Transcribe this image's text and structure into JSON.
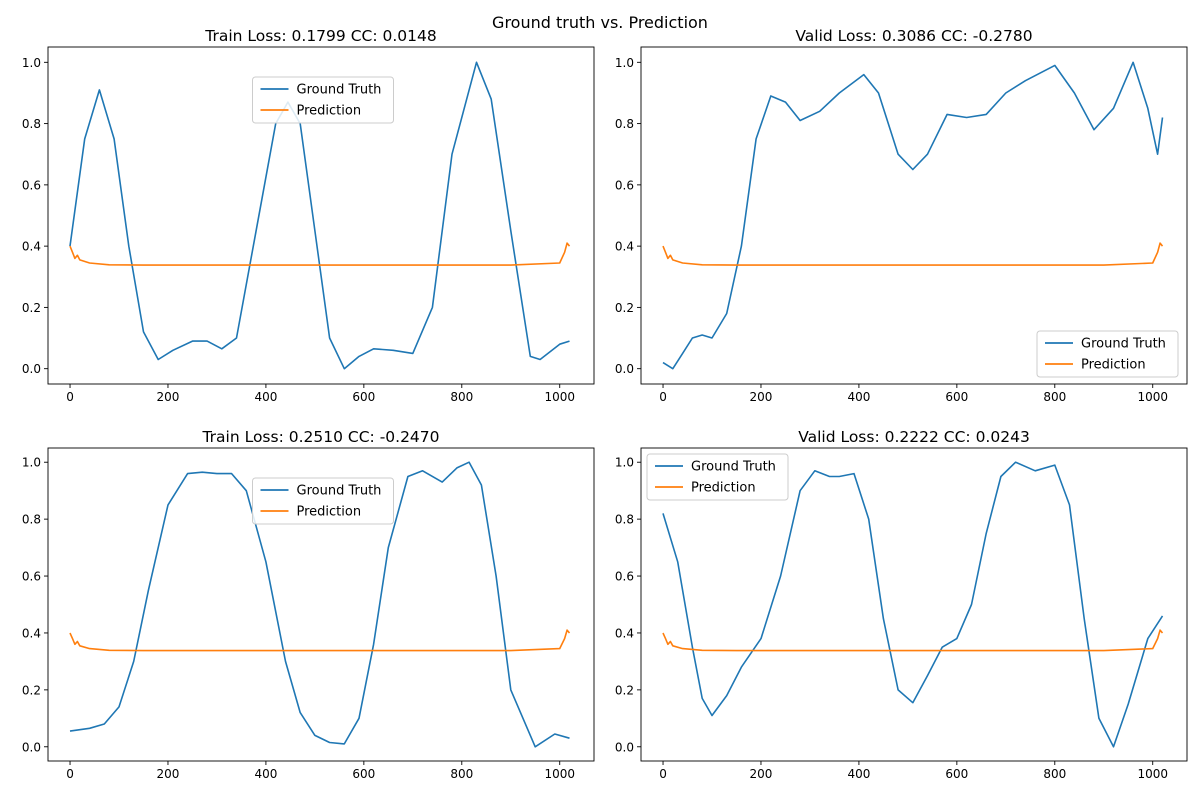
{
  "figure": {
    "suptitle": "Ground truth vs. Prediction"
  },
  "colors": {
    "ground_truth": "#1f77b4",
    "prediction": "#ff7f0e",
    "axes": "#000000",
    "legend_edge": "#cccccc"
  },
  "chart_data": [
    {
      "type": "line",
      "title": "Train Loss: 0.1799 CC: 0.0148",
      "xlabel": "",
      "ylabel": "",
      "xlim": [
        -45,
        1070
      ],
      "ylim": [
        -0.05,
        1.05
      ],
      "xticks": [
        0,
        200,
        400,
        600,
        800,
        1000
      ],
      "yticks": [
        0.0,
        0.2,
        0.4,
        0.6,
        0.8,
        1.0
      ],
      "grid": false,
      "legend": "upper center",
      "series": [
        {
          "name": "Ground Truth",
          "color": "#1f77b4",
          "x": [
            0,
            30,
            60,
            90,
            120,
            150,
            180,
            210,
            250,
            280,
            310,
            340,
            380,
            420,
            445,
            470,
            500,
            530,
            560,
            590,
            620,
            660,
            700,
            740,
            780,
            830,
            860,
            900,
            940,
            960,
            1000,
            1020
          ],
          "y": [
            0.4,
            0.75,
            0.91,
            0.75,
            0.4,
            0.12,
            0.03,
            0.06,
            0.09,
            0.09,
            0.065,
            0.1,
            0.45,
            0.8,
            0.87,
            0.8,
            0.45,
            0.1,
            0.0,
            0.04,
            0.065,
            0.06,
            0.05,
            0.2,
            0.7,
            1.0,
            0.88,
            0.45,
            0.04,
            0.03,
            0.08,
            0.09
          ]
        },
        {
          "name": "Prediction",
          "color": "#ff7f0e",
          "x": [
            0,
            5,
            10,
            15,
            20,
            40,
            80,
            150,
            300,
            500,
            700,
            900,
            1000,
            1010,
            1015,
            1020
          ],
          "y": [
            0.4,
            0.38,
            0.36,
            0.37,
            0.355,
            0.345,
            0.339,
            0.338,
            0.338,
            0.338,
            0.338,
            0.338,
            0.345,
            0.38,
            0.41,
            0.4
          ]
        }
      ]
    },
    {
      "type": "line",
      "title": "Valid Loss: 0.3086 CC: -0.2780",
      "xlabel": "",
      "ylabel": "",
      "xlim": [
        -45,
        1070
      ],
      "ylim": [
        -0.05,
        1.05
      ],
      "xticks": [
        0,
        200,
        400,
        600,
        800,
        1000
      ],
      "yticks": [
        0.0,
        0.2,
        0.4,
        0.6,
        0.8,
        1.0
      ],
      "grid": false,
      "legend": "lower right",
      "series": [
        {
          "name": "Ground Truth",
          "color": "#1f77b4",
          "x": [
            0,
            20,
            40,
            60,
            80,
            100,
            130,
            160,
            190,
            220,
            250,
            280,
            320,
            360,
            410,
            440,
            480,
            510,
            540,
            580,
            620,
            660,
            700,
            740,
            800,
            840,
            880,
            920,
            960,
            990,
            1010,
            1020
          ],
          "y": [
            0.02,
            0.0,
            0.05,
            0.1,
            0.11,
            0.1,
            0.18,
            0.4,
            0.75,
            0.89,
            0.87,
            0.81,
            0.84,
            0.9,
            0.96,
            0.9,
            0.7,
            0.65,
            0.7,
            0.83,
            0.82,
            0.83,
            0.9,
            0.94,
            0.99,
            0.9,
            0.78,
            0.85,
            1.0,
            0.85,
            0.7,
            0.82
          ]
        },
        {
          "name": "Prediction",
          "color": "#ff7f0e",
          "x": [
            0,
            5,
            10,
            15,
            20,
            40,
            80,
            150,
            300,
            500,
            700,
            900,
            1000,
            1010,
            1015,
            1020
          ],
          "y": [
            0.4,
            0.38,
            0.36,
            0.37,
            0.355,
            0.345,
            0.339,
            0.338,
            0.338,
            0.338,
            0.338,
            0.338,
            0.345,
            0.38,
            0.41,
            0.4
          ]
        }
      ]
    },
    {
      "type": "line",
      "title": "Train Loss: 0.2510 CC: -0.2470",
      "xlabel": "",
      "ylabel": "",
      "xlim": [
        -45,
        1070
      ],
      "ylim": [
        -0.05,
        1.05
      ],
      "xticks": [
        0,
        200,
        400,
        600,
        800,
        1000
      ],
      "yticks": [
        0.0,
        0.2,
        0.4,
        0.6,
        0.8,
        1.0
      ],
      "grid": false,
      "legend": "upper center",
      "series": [
        {
          "name": "Ground Truth",
          "color": "#1f77b4",
          "x": [
            0,
            40,
            70,
            100,
            130,
            160,
            200,
            240,
            270,
            300,
            330,
            360,
            400,
            440,
            470,
            500,
            530,
            560,
            590,
            620,
            650,
            690,
            720,
            760,
            790,
            815,
            840,
            870,
            900,
            950,
            990,
            1020
          ],
          "y": [
            0.055,
            0.065,
            0.08,
            0.14,
            0.3,
            0.55,
            0.85,
            0.96,
            0.965,
            0.96,
            0.96,
            0.9,
            0.65,
            0.3,
            0.12,
            0.04,
            0.015,
            0.01,
            0.1,
            0.36,
            0.7,
            0.95,
            0.97,
            0.93,
            0.98,
            1.0,
            0.92,
            0.6,
            0.2,
            0.0,
            0.045,
            0.03
          ]
        },
        {
          "name": "Prediction",
          "color": "#ff7f0e",
          "x": [
            0,
            5,
            10,
            15,
            20,
            40,
            80,
            150,
            300,
            500,
            700,
            900,
            1000,
            1010,
            1015,
            1020
          ],
          "y": [
            0.4,
            0.38,
            0.36,
            0.37,
            0.355,
            0.345,
            0.339,
            0.338,
            0.338,
            0.338,
            0.338,
            0.338,
            0.345,
            0.38,
            0.41,
            0.4
          ]
        }
      ]
    },
    {
      "type": "line",
      "title": "Valid Loss: 0.2222 CC: 0.0243",
      "xlabel": "",
      "ylabel": "",
      "xlim": [
        -45,
        1070
      ],
      "ylim": [
        -0.05,
        1.05
      ],
      "xticks": [
        0,
        200,
        400,
        600,
        800,
        1000
      ],
      "yticks": [
        0.0,
        0.2,
        0.4,
        0.6,
        0.8,
        1.0
      ],
      "grid": false,
      "legend": "upper left",
      "series": [
        {
          "name": "Ground Truth",
          "color": "#1f77b4",
          "x": [
            0,
            30,
            60,
            80,
            100,
            130,
            160,
            200,
            240,
            280,
            310,
            340,
            360,
            390,
            420,
            450,
            480,
            510,
            540,
            570,
            600,
            630,
            660,
            690,
            720,
            760,
            800,
            830,
            860,
            890,
            920,
            950,
            990,
            1020
          ],
          "y": [
            0.82,
            0.65,
            0.35,
            0.17,
            0.11,
            0.18,
            0.28,
            0.38,
            0.6,
            0.9,
            0.97,
            0.95,
            0.95,
            0.96,
            0.8,
            0.45,
            0.2,
            0.155,
            0.25,
            0.35,
            0.38,
            0.5,
            0.75,
            0.95,
            1.0,
            0.97,
            0.99,
            0.85,
            0.45,
            0.1,
            0.0,
            0.15,
            0.38,
            0.46
          ]
        },
        {
          "name": "Prediction",
          "color": "#ff7f0e",
          "x": [
            0,
            5,
            10,
            15,
            20,
            40,
            80,
            150,
            300,
            500,
            700,
            900,
            1000,
            1010,
            1015,
            1020
          ],
          "y": [
            0.4,
            0.38,
            0.36,
            0.37,
            0.355,
            0.345,
            0.339,
            0.338,
            0.338,
            0.338,
            0.338,
            0.338,
            0.345,
            0.38,
            0.41,
            0.4
          ]
        }
      ]
    }
  ]
}
